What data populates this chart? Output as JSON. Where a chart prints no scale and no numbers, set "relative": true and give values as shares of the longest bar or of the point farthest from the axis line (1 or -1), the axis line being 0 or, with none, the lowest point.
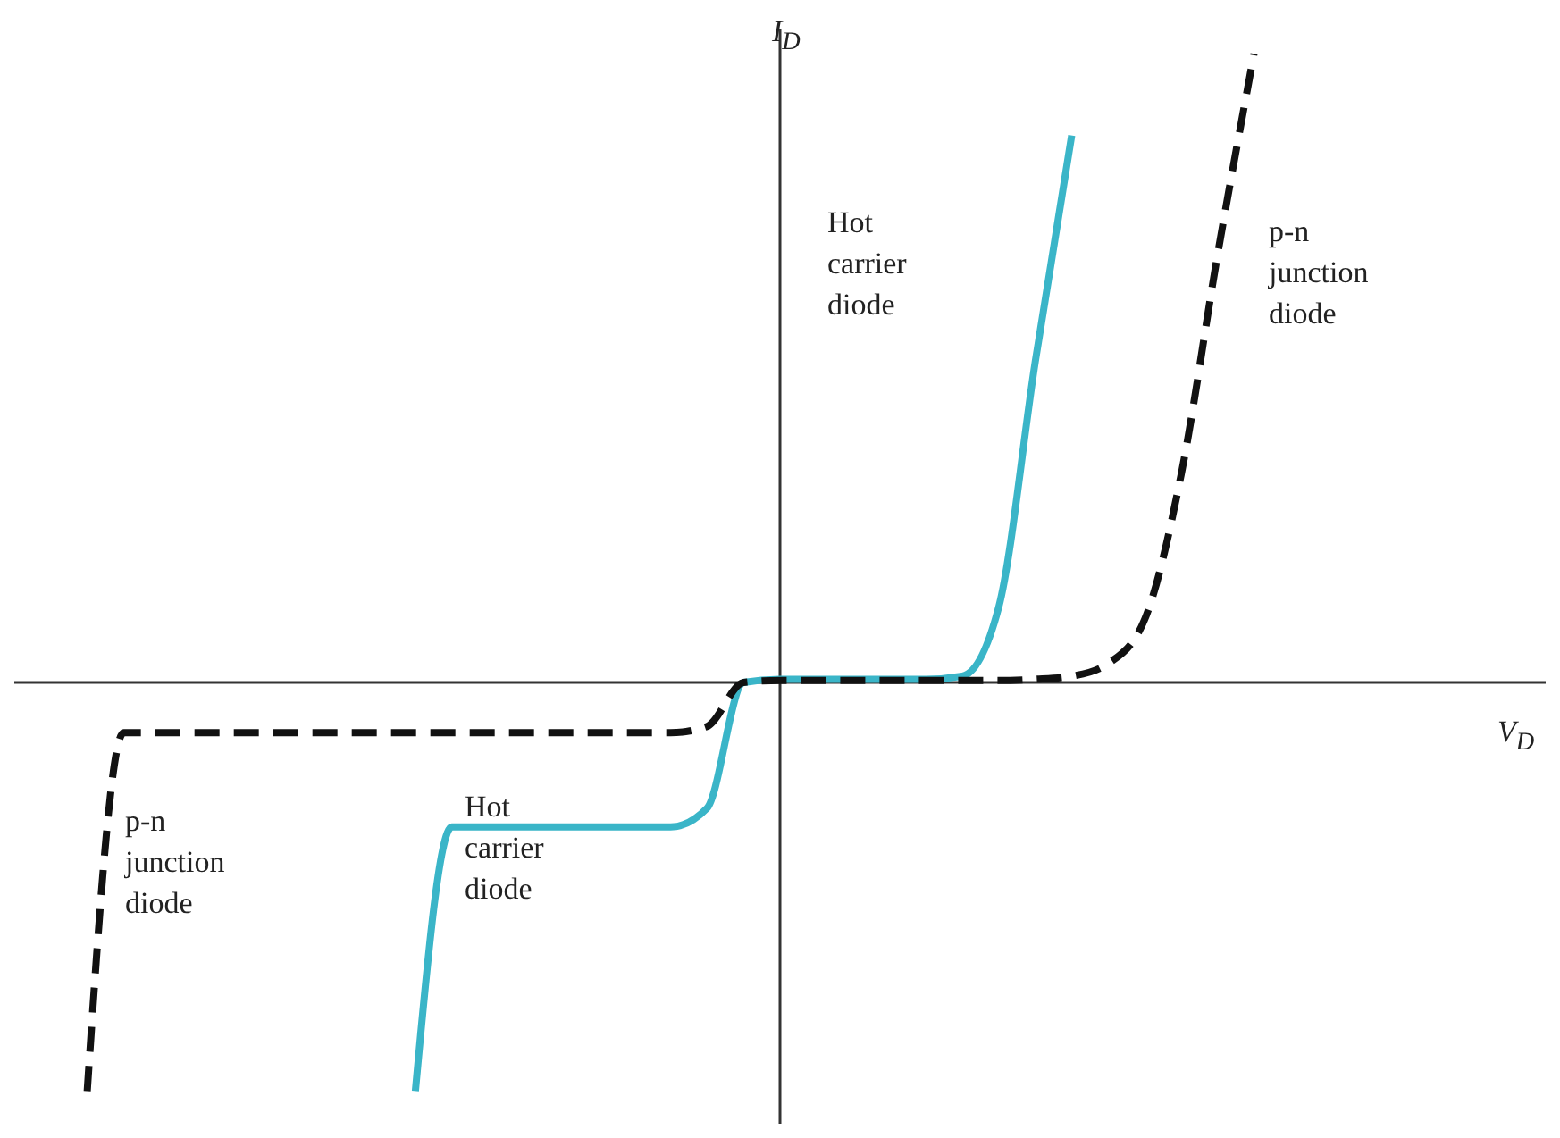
{
  "chart_data": {
    "type": "line",
    "relative": true,
    "xlabel": "V$_{D}$",
    "ylabel": "I$_{D}$",
    "marker": "none",
    "categories": [
      null,
      null,
      null,
      null,
      null,
      null,
      null,
      null,
      null,
      null,
      null,
      null,
      null,
      null,
      null,
      null,
      null,
      null,
      null,
      null,
      null,
      null,
      null,
      null,
      null,
      null,
      null,
      null,
      null,
      null,
      null,
      null,
      null,
      null,
      null,
      null,
      null,
      null,
      null,
      null,
      null,
      null,
      null
    ],
    "series": [
      {
        "color": "#3ab5c8",
        "line_style": "solid",
        "values": [
          null,
          null,
          null,
          null,
          null,
          null,
          null,
          null,
          null,
          null,
          null,
          -0.65,
          -0.23,
          -0.23,
          -0.23,
          -0.23,
          -0.23,
          -0.23,
          -0.23,
          -0.2,
          0,
          0.005,
          0.005,
          0.005,
          0.005,
          0.005,
          0.01,
          0.12,
          0.51,
          0.87,
          null,
          null,
          null,
          null,
          null,
          null,
          null,
          null,
          null,
          null,
          null,
          null,
          null
        ]
      },
      {
        "color": "#111111",
        "line_style": "dashed",
        "values": [
          null,
          null,
          -0.65,
          -0.08,
          -0.08,
          -0.08,
          -0.08,
          -0.08,
          -0.08,
          -0.08,
          -0.08,
          -0.08,
          -0.08,
          -0.08,
          -0.08,
          -0.08,
          -0.08,
          -0.08,
          -0.08,
          -0.07,
          0,
          0.003,
          0.003,
          0.003,
          0.003,
          0.003,
          0.003,
          0.003,
          0.005,
          0.01,
          0.03,
          0.1,
          0.33,
          0.68,
          1,
          null,
          null,
          null,
          null,
          null,
          null,
          null,
          null
        ]
      }
    ],
    "annotations": [
      "Hot carrier diode",
      "p-n junction diode",
      "p-n junction diode",
      "Hot carrier diode"
    ]
  }
}
